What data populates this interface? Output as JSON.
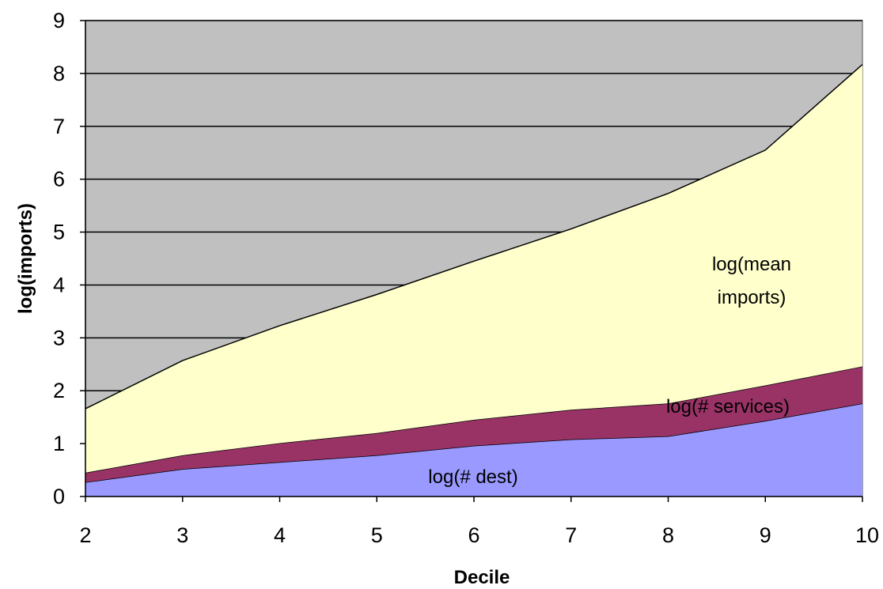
{
  "chart_data": {
    "type": "area",
    "stacked": true,
    "xlabel": "Decile",
    "ylabel": "log(imports)",
    "categories": [
      2,
      3,
      4,
      5,
      6,
      7,
      8,
      9,
      10
    ],
    "ylim": [
      0,
      9
    ],
    "yticks": [
      0,
      1,
      2,
      3,
      4,
      5,
      6,
      7,
      8,
      9
    ],
    "grid": true,
    "series": [
      {
        "values": [
          0.27,
          0.52,
          0.65,
          0.78,
          0.96,
          1.08,
          1.14,
          1.43,
          1.76
        ],
        "color": "#9999ff"
      },
      {
        "values": [
          0.18,
          0.26,
          0.36,
          0.42,
          0.49,
          0.56,
          0.62,
          0.67,
          0.7
        ],
        "color": "#993366"
      },
      {
        "values": [
          1.21,
          1.79,
          2.22,
          2.62,
          3.0,
          3.42,
          3.97,
          4.45,
          5.71
        ],
        "color": "#ffffcc"
      }
    ],
    "annotations": [
      {
        "text": "log(# dest)",
        "series_index": 0
      },
      {
        "text": "log(# services)",
        "series_index": 1
      },
      {
        "text": "log(mean",
        "series_index": 2
      },
      {
        "text": "imports)",
        "series_index": 2
      }
    ],
    "plot_background": "#c0c0c0",
    "line_color": "#000000"
  }
}
